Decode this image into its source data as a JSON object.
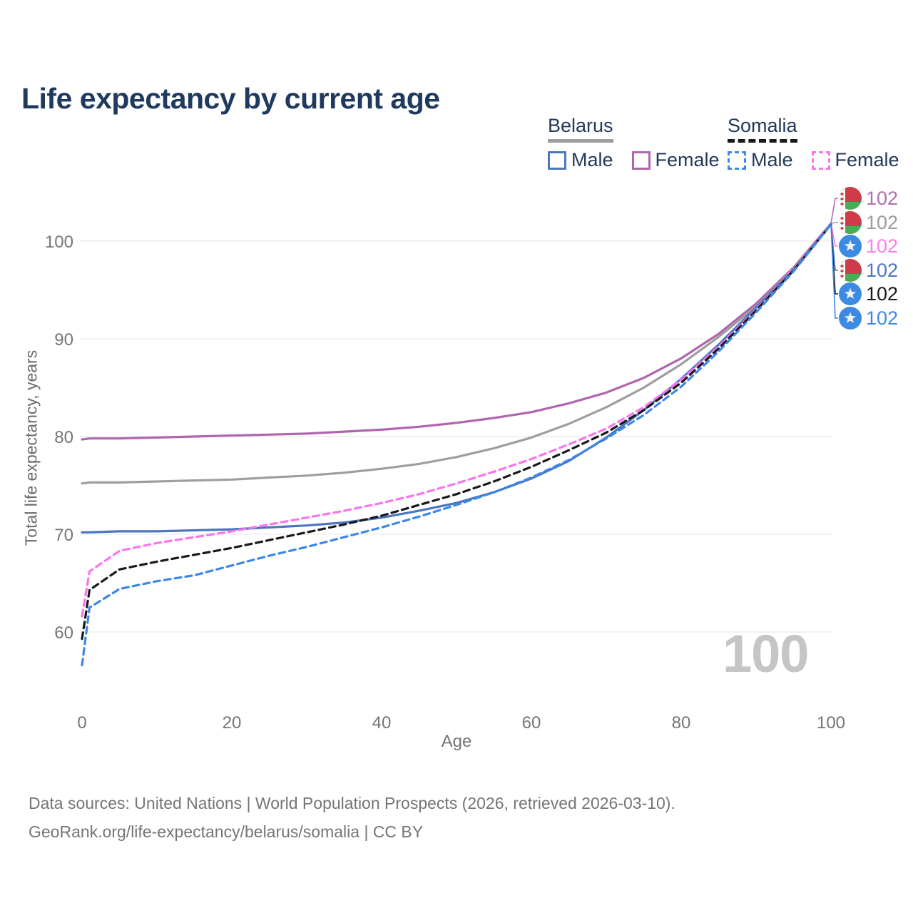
{
  "title": "Life expectancy by current age",
  "age_counter": "100",
  "legend": {
    "groups": [
      {
        "country": "Belarus",
        "line_style": "solid",
        "line_color": "#9e9e9e",
        "items": [
          {
            "label": "Male",
            "color": "#4a77bd",
            "style": "solid"
          },
          {
            "label": "Female",
            "color": "#b066ae",
            "style": "solid"
          }
        ]
      },
      {
        "country": "Somalia",
        "line_style": "dashed",
        "line_color": "#17191c",
        "items": [
          {
            "label": "Male",
            "color": "#3c87e9",
            "style": "dashed"
          },
          {
            "label": "Female",
            "color": "#fb74ec",
            "style": "dashed"
          }
        ]
      }
    ]
  },
  "end_labels": [
    {
      "series": "Belarus Female",
      "flag": "belarus",
      "value": "102",
      "color": "#b06fb0"
    },
    {
      "series": "Belarus",
      "flag": "belarus",
      "value": "102",
      "color": "#9c9c9c"
    },
    {
      "series": "Somalia Female",
      "flag": "somalia",
      "value": "102",
      "color": "#ff7bea"
    },
    {
      "series": "Belarus Male",
      "flag": "belarus",
      "value": "102",
      "color": "#4a77bd"
    },
    {
      "series": "Somalia",
      "flag": "somalia",
      "value": "102",
      "color": "#17191c"
    },
    {
      "series": "Somalia Male",
      "flag": "somalia",
      "value": "102",
      "color": "#3c87e9"
    }
  ],
  "footer": {
    "line1": "Data sources: United Nations | World Population Prospects (2026, retrieved 2026-03-10).",
    "line2": "GeoRank.org/life-expectancy/belarus/somalia | CC BY"
  },
  "chart_data": {
    "type": "line",
    "title": "Life expectancy by current age",
    "xlabel": "Age",
    "ylabel": "Total life expectancy, years",
    "xlim": [
      0,
      100
    ],
    "ylim": [
      56,
      103
    ],
    "xticks": [
      0,
      20,
      40,
      60,
      80,
      100
    ],
    "yticks": [
      60,
      70,
      80,
      90,
      100
    ],
    "grid": "horizontal",
    "legend_position": "top-right",
    "x": [
      0,
      1,
      5,
      10,
      15,
      20,
      25,
      30,
      35,
      40,
      45,
      50,
      55,
      60,
      65,
      70,
      75,
      80,
      85,
      90,
      95,
      100
    ],
    "series": [
      {
        "id": "belarus-female",
        "name": "Belarus Female",
        "country": "Belarus",
        "sex": "female",
        "style": "solid",
        "color": "#b066ae",
        "values": [
          79.7,
          79.8,
          79.8,
          79.9,
          80.0,
          80.1,
          80.2,
          80.3,
          80.5,
          80.7,
          81.0,
          81.4,
          81.9,
          82.5,
          83.4,
          84.5,
          86.0,
          88.0,
          90.5,
          93.6,
          97.3,
          101.8
        ]
      },
      {
        "id": "belarus-all",
        "name": "Belarus",
        "country": "Belarus",
        "sex": "all",
        "style": "solid",
        "color": "#9e9e9e",
        "values": [
          75.2,
          75.3,
          75.3,
          75.4,
          75.5,
          75.6,
          75.8,
          76.0,
          76.3,
          76.7,
          77.2,
          77.9,
          78.8,
          79.9,
          81.3,
          83.0,
          85.0,
          87.4,
          90.2,
          93.3,
          97.2,
          101.8
        ]
      },
      {
        "id": "belarus-male",
        "name": "Belarus Male",
        "country": "Belarus",
        "sex": "male",
        "style": "solid",
        "color": "#4a77bd",
        "values": [
          70.2,
          70.2,
          70.3,
          70.3,
          70.4,
          70.5,
          70.7,
          70.9,
          71.2,
          71.7,
          72.4,
          73.2,
          74.3,
          75.7,
          77.5,
          79.9,
          82.7,
          85.9,
          89.4,
          93.2,
          97.1,
          101.7
        ]
      },
      {
        "id": "somalia-female",
        "name": "Somalia Female",
        "country": "Somalia",
        "sex": "female",
        "style": "dashed",
        "color": "#fb74ec",
        "values": [
          61.6,
          66.2,
          68.3,
          69.1,
          69.7,
          70.3,
          71.0,
          71.7,
          72.4,
          73.2,
          74.1,
          75.2,
          76.4,
          77.7,
          79.2,
          80.8,
          83.0,
          85.8,
          89.2,
          93.0,
          97.1,
          101.8
        ]
      },
      {
        "id": "somalia-all",
        "name": "Somalia",
        "country": "Somalia",
        "sex": "all",
        "style": "dashed",
        "color": "#17191c",
        "values": [
          59.3,
          64.3,
          66.4,
          67.2,
          67.9,
          68.6,
          69.4,
          70.2,
          71.0,
          71.9,
          73.0,
          74.1,
          75.4,
          76.9,
          78.6,
          80.4,
          82.7,
          85.5,
          89.0,
          92.9,
          97.0,
          101.7
        ]
      },
      {
        "id": "somalia-male",
        "name": "Somalia Male",
        "country": "Somalia",
        "sex": "male",
        "style": "dashed",
        "color": "#3c87e9",
        "values": [
          56.6,
          62.5,
          64.4,
          65.2,
          65.8,
          66.8,
          67.8,
          68.7,
          69.7,
          70.7,
          71.8,
          73.0,
          74.3,
          75.8,
          77.6,
          79.8,
          82.2,
          85.1,
          88.7,
          92.7,
          96.9,
          101.7
        ]
      }
    ]
  }
}
